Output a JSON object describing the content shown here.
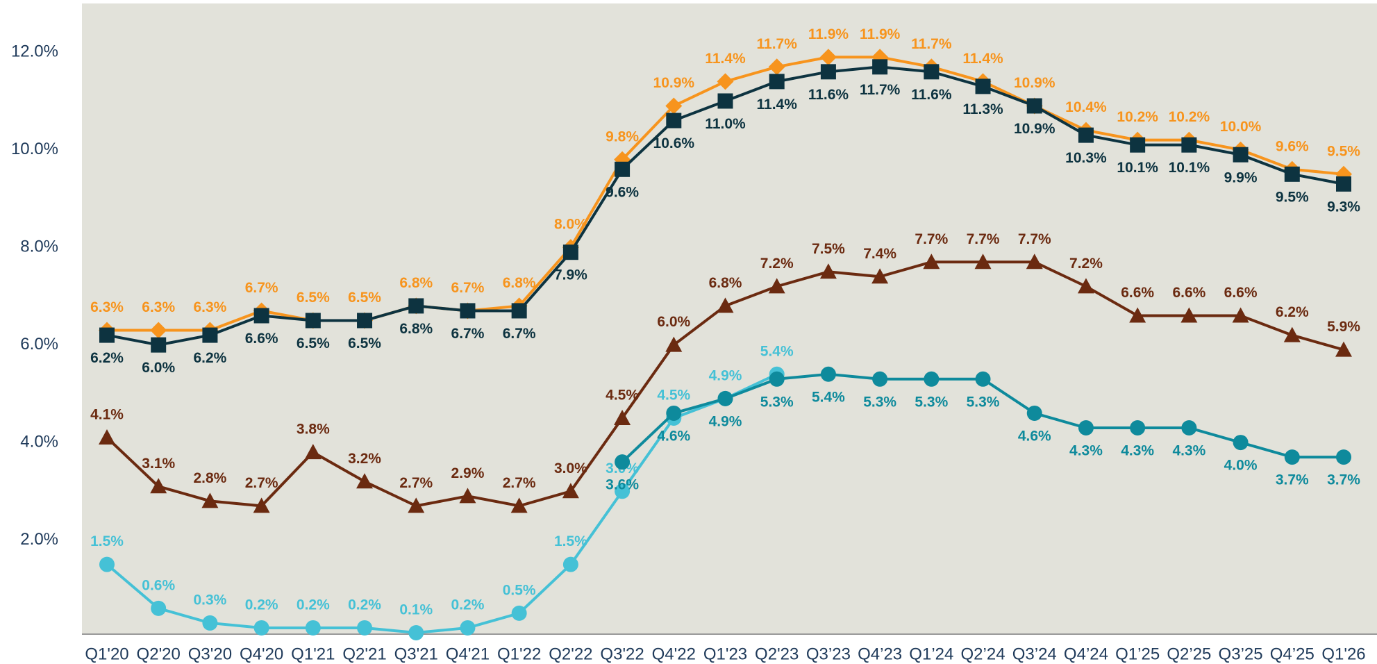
{
  "chart_data": {
    "type": "line",
    "categories": [
      "Q1'20",
      "Q2'20",
      "Q3'20",
      "Q4'20",
      "Q1'21",
      "Q2'21",
      "Q3'21",
      "Q4'21",
      "Q1'22",
      "Q2'22",
      "Q3'22",
      "Q4'22",
      "Q1'23",
      "Q2'23",
      "Q3’23",
      "Q4’23",
      "Q1’24",
      "Q2’24",
      "Q3’24",
      "Q4’24",
      "Q1’25",
      "Q2’25",
      "Q3’25",
      "Q4’25",
      "Q1'26"
    ],
    "ylim": [
      0,
      13
    ],
    "yticks": [
      {
        "value": 2,
        "label": "2.0%"
      },
      {
        "value": 4,
        "label": "4.0%"
      },
      {
        "value": 6,
        "label": "6.0%"
      },
      {
        "value": 8,
        "label": "8.0%"
      },
      {
        "value": 10,
        "label": "10.0%"
      },
      {
        "value": 12,
        "label": "12.0%"
      }
    ],
    "series": [
      {
        "color": "#f7941d",
        "marker": "diamond",
        "label_position": "above",
        "values": [
          6.3,
          6.3,
          6.3,
          6.7,
          6.5,
          6.5,
          6.8,
          6.7,
          6.8,
          8.0,
          9.8,
          10.9,
          11.4,
          11.7,
          11.9,
          11.9,
          11.7,
          11.4,
          10.9,
          10.4,
          10.2,
          10.2,
          10.0,
          9.6,
          9.5
        ],
        "value_labels": [
          "6.3%",
          "6.3%",
          "6.3%",
          "6.7%",
          "6.5%",
          "6.5%",
          "6.8%",
          "6.7%",
          "6.8%",
          "8.0%",
          "9.8%",
          "10.9%",
          "11.4%",
          "11.7%",
          "11.9%",
          "11.9%",
          "11.7%",
          "11.4%",
          "10.9%",
          "10.4%",
          "10.2%",
          "10.2%",
          "10.0%",
          "9.6%",
          "9.5%"
        ]
      },
      {
        "color": "#0d3340",
        "marker": "square",
        "label_position": "below",
        "values": [
          6.2,
          6.0,
          6.2,
          6.6,
          6.5,
          6.5,
          6.8,
          6.7,
          6.7,
          7.9,
          9.6,
          10.6,
          11.0,
          11.4,
          11.6,
          11.7,
          11.6,
          11.3,
          10.9,
          10.3,
          10.1,
          10.1,
          9.9,
          9.5,
          9.3
        ],
        "value_labels": [
          "6.2%",
          "6.0%",
          "6.2%",
          "6.6%",
          "6.5%",
          "6.5%",
          "6.8%",
          "6.7%",
          "6.7%",
          "7.9%",
          "9.6%",
          "10.6%",
          "11.0%",
          "11.4%",
          "11.6%",
          "11.7%",
          "11.6%",
          "11.3%",
          "10.9%",
          "10.3%",
          "10.1%",
          "10.1%",
          "9.9%",
          "9.5%",
          "9.3%"
        ]
      },
      {
        "color": "#6b2a10",
        "marker": "triangle",
        "label_position": "above",
        "values": [
          4.1,
          3.1,
          2.8,
          2.7,
          3.8,
          3.2,
          2.7,
          2.9,
          2.7,
          3.0,
          4.5,
          6.0,
          6.8,
          7.2,
          7.5,
          7.4,
          7.7,
          7.7,
          7.7,
          7.2,
          6.6,
          6.6,
          6.6,
          6.2,
          5.9
        ],
        "value_labels": [
          "4.1%",
          "3.1%",
          "2.8%",
          "2.7%",
          "3.8%",
          "3.2%",
          "2.7%",
          "2.9%",
          "2.7%",
          "3.0%",
          "4.5%",
          "6.0%",
          "6.8%",
          "7.2%",
          "7.5%",
          "7.4%",
          "7.7%",
          "7.7%",
          "7.7%",
          "7.2%",
          "6.6%",
          "6.6%",
          "6.6%",
          "6.2%",
          "5.9%"
        ]
      },
      {
        "color": "#45c1d6",
        "marker": "circle",
        "label_position": "above",
        "values": [
          1.5,
          0.6,
          0.3,
          0.2,
          0.2,
          0.2,
          0.1,
          0.2,
          0.5,
          1.5,
          3.0,
          4.5,
          4.9,
          5.4,
          null,
          null,
          null,
          null,
          null,
          null,
          null,
          null,
          null,
          null,
          null
        ],
        "value_labels": [
          "1.5%",
          "0.6%",
          "0.3%",
          "0.2%",
          "0.2%",
          "0.2%",
          "0.1%",
          "0.2%",
          "0.5%",
          "1.5%",
          "3.0%",
          "4.5%",
          "4.9%",
          "5.4%",
          null,
          null,
          null,
          null,
          null,
          null,
          null,
          null,
          null,
          null,
          null
        ]
      },
      {
        "color": "#0e8a9c",
        "marker": "circle",
        "label_position": "below",
        "values": [
          null,
          null,
          null,
          null,
          null,
          null,
          null,
          null,
          null,
          null,
          3.6,
          4.6,
          4.9,
          5.3,
          5.4,
          5.3,
          5.3,
          5.3,
          4.6,
          4.3,
          4.3,
          4.3,
          4.0,
          3.7,
          3.7
        ],
        "value_labels": [
          null,
          null,
          null,
          null,
          null,
          null,
          null,
          null,
          null,
          null,
          "3.6%",
          "4.6%",
          "4.9%",
          "5.3%",
          "5.4%",
          "5.3%",
          "5.3%",
          "5.3%",
          "4.6%",
          "4.3%",
          "4.3%",
          "4.3%",
          "4.0%",
          "3.7%",
          "3.7%"
        ]
      }
    ]
  }
}
